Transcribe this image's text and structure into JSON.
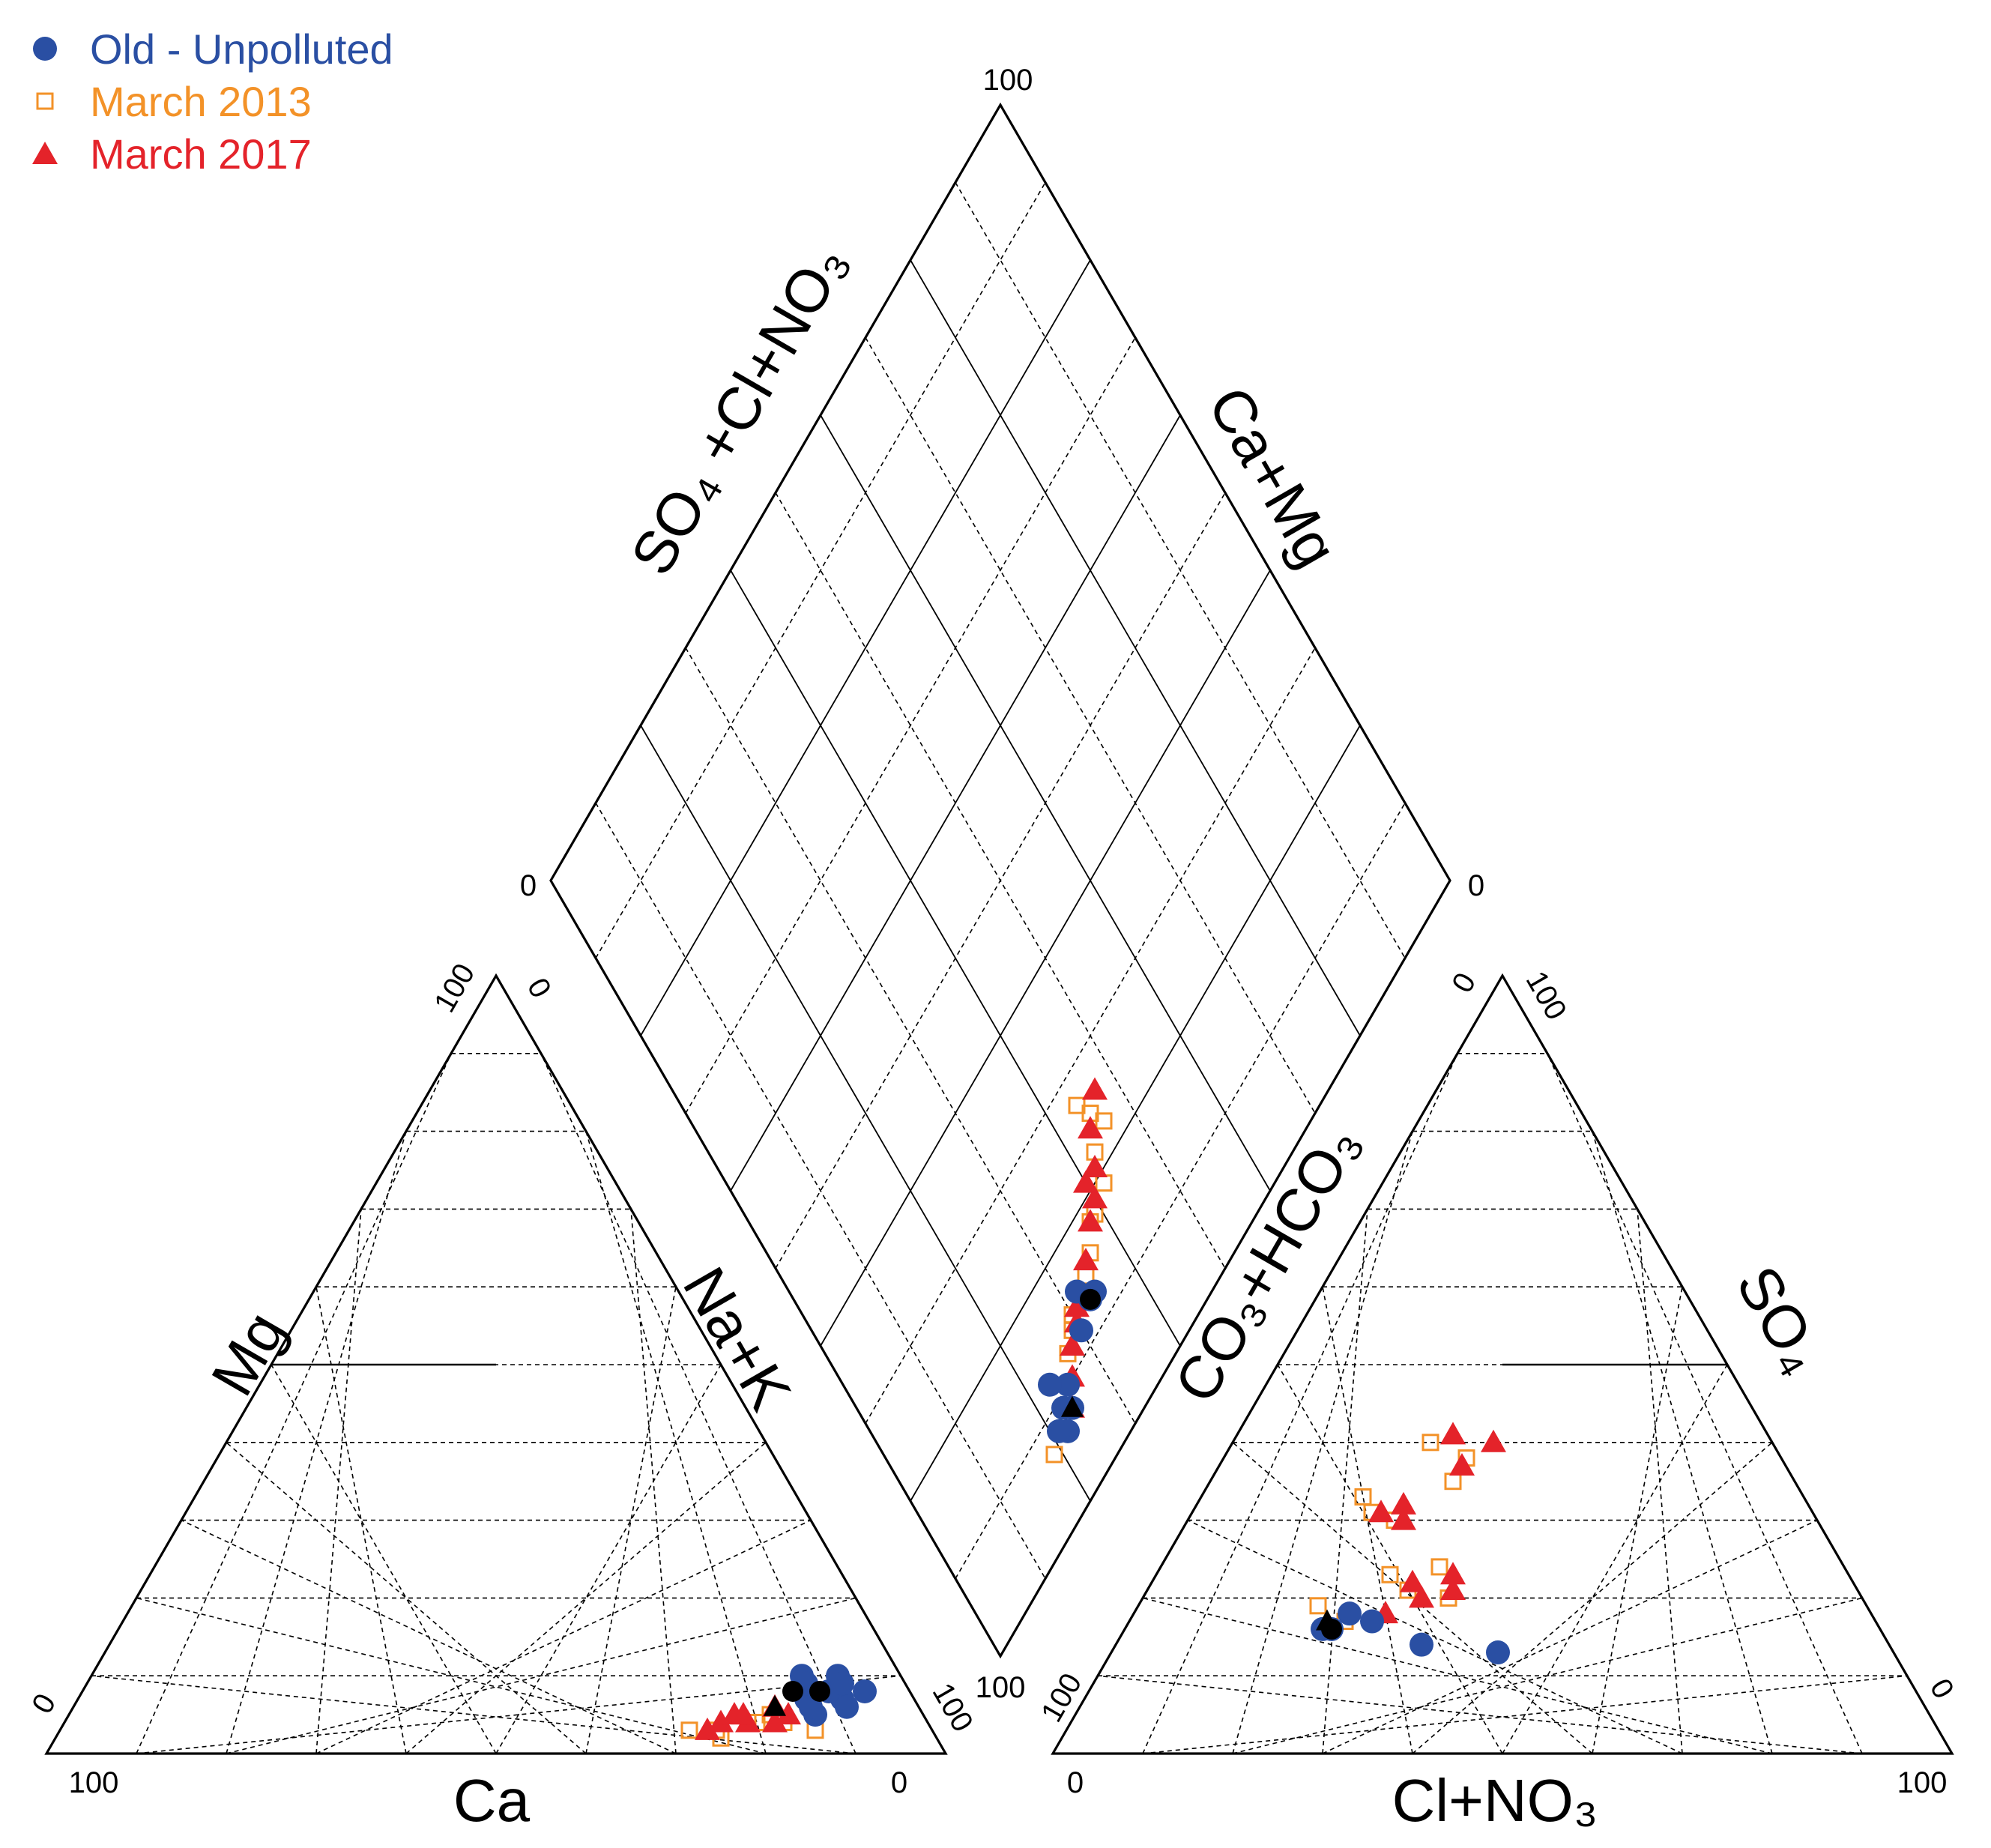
{
  "chart_data": {
    "type": "scatter",
    "subtype": "piper-diagram",
    "legend": {
      "placement": "top-left",
      "entries": [
        {
          "name": "Old - Unpolluted",
          "marker": "filled-circle",
          "color": "#2A4FA3"
        },
        {
          "name": "March 2013",
          "marker": "open-square",
          "color": "#F39228"
        },
        {
          "name": "March 2017",
          "marker": "filled-triangle",
          "color": "#E4232A"
        }
      ]
    },
    "axes": {
      "cation": {
        "mg_label": "Mg",
        "nak_label": "Na+K",
        "ca_label": "Ca",
        "tick_ca_100": "100",
        "tick_ca_0": "0",
        "tick_mg_100": "100",
        "tick_mg_0": "0",
        "tick_nak_0": "0",
        "tick_nak_100": "100"
      },
      "anion": {
        "co3_label": "CO3+HCO3",
        "so4_label": "SO4",
        "cl_label": "Cl+NO3",
        "tick_cl_0": "0",
        "tick_cl_100": "100",
        "tick_co3_100": "100",
        "tick_co3_0": "0",
        "tick_so4_100": "100",
        "tick_so4_0": "0"
      },
      "diamond": {
        "left_label": "SO4 +Cl+NO3",
        "right_label": "Ca+Mg",
        "tick_top": "100",
        "tick_left": "0",
        "tick_right": "0",
        "tick_bottom": "100"
      }
    },
    "grid": true,
    "grid_step": 10,
    "series": [
      {
        "name": "Old - Unpolluted",
        "cations_mg_nak": [
          [
            8,
            83
          ],
          [
            10,
            83
          ],
          [
            7,
            85
          ],
          [
            9,
            84
          ],
          [
            6,
            86
          ],
          [
            8,
            87
          ],
          [
            5,
            83
          ],
          [
            7,
            81
          ],
          [
            6,
            82
          ],
          [
            10,
            79
          ],
          [
            9,
            80
          ]
        ],
        "anions_so4_cl": [
          [
            18,
            24
          ],
          [
            16,
            23
          ],
          [
            14,
            34
          ],
          [
            17,
            27
          ],
          [
            13,
            43
          ],
          [
            16,
            22
          ]
        ],
        "diamond_so4cl_camg": [
          [
            22,
            7
          ],
          [
            21,
            8
          ],
          [
            24,
            8
          ],
          [
            23,
            9
          ],
          [
            25,
            10
          ],
          [
            23,
            12
          ],
          [
            30,
            12
          ],
          [
            33,
            13
          ],
          [
            32,
            15
          ],
          [
            34,
            13
          ]
        ]
      },
      {
        "name": "March 2013",
        "cations_mg_nak": [
          [
            3,
            84
          ],
          [
            4,
            80
          ],
          [
            5,
            78
          ],
          [
            4,
            76
          ],
          [
            3,
            73
          ],
          [
            2,
            74
          ],
          [
            3,
            70
          ],
          [
            4,
            77
          ]
        ],
        "anions_so4_cl": [
          [
            20,
            34
          ],
          [
            24,
            31
          ],
          [
            30,
            23
          ],
          [
            31,
            20
          ],
          [
            33,
            18
          ],
          [
            21,
            29
          ],
          [
            23,
            26
          ],
          [
            18,
            24
          ],
          [
            19,
            20
          ],
          [
            17,
            24
          ],
          [
            40,
            22
          ],
          [
            38,
            27
          ],
          [
            35,
            27
          ]
        ],
        "diamond_so4cl_camg": [
          [
            19,
            7
          ],
          [
            23,
            9
          ],
          [
            27,
            12
          ],
          [
            29,
            13
          ],
          [
            30,
            14
          ],
          [
            34,
            15
          ],
          [
            36,
            16
          ],
          [
            38,
            18
          ],
          [
            39,
            18
          ],
          [
            42,
            19
          ],
          [
            43,
            22
          ],
          [
            46,
            23
          ],
          [
            45,
            25
          ],
          [
            44,
            27
          ]
        ]
      },
      {
        "name": "March 2017",
        "cations_mg_nak": [
          [
            5,
            80
          ],
          [
            6,
            78
          ],
          [
            4,
            76
          ],
          [
            5,
            75
          ],
          [
            4,
            73
          ],
          [
            3,
            72
          ],
          [
            5,
            74
          ],
          [
            4,
            79
          ]
        ],
        "anions_so4_cl": [
          [
            31,
            21
          ],
          [
            32,
            23
          ],
          [
            30,
            24
          ],
          [
            20,
            31
          ],
          [
            22,
            29
          ],
          [
            18,
            28
          ],
          [
            21,
            34
          ],
          [
            41,
            24
          ],
          [
            40,
            29
          ],
          [
            37,
            27
          ],
          [
            23,
            33
          ]
        ],
        "diamond_so4cl_camg": [
          [
            24,
            8
          ],
          [
            26,
            10
          ],
          [
            28,
            12
          ],
          [
            30,
            13
          ],
          [
            31,
            14
          ],
          [
            35,
            16
          ],
          [
            38,
            18
          ],
          [
            40,
            19
          ],
          [
            40,
            21
          ],
          [
            42,
            21
          ],
          [
            44,
            24
          ],
          [
            47,
            26
          ]
        ]
      }
    ]
  }
}
